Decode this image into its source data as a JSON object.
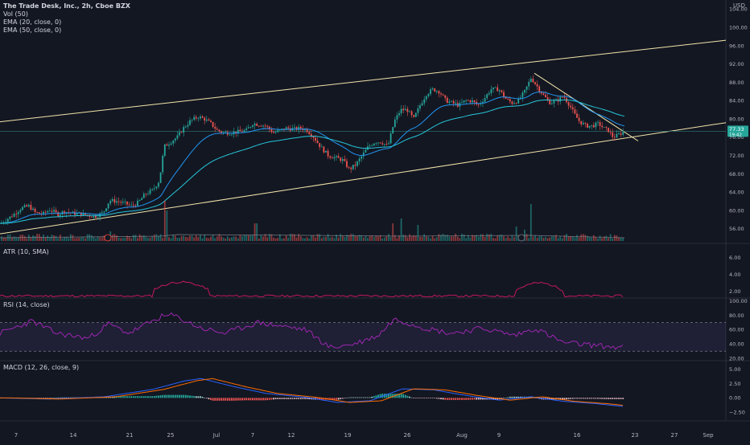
{
  "header": {
    "symbol_line": "The Trade Desk, Inc., 2h, Cboe BZX",
    "vol_label": "Vol (50)",
    "ema20_label": "EMA (20, close, 0)",
    "ema50_label": "EMA (50, close, 0)",
    "currency": "USD"
  },
  "panes": {
    "atr_label": "ATR (10, SMA)",
    "rsi_label": "RSI (14, close)",
    "macd_label": "MACD (12, 26, close, 9)"
  },
  "colors": {
    "background": "#131722",
    "up": "#26a69a",
    "down": "#ef5350",
    "channel": "#f3e5ab",
    "ema20": "#2196f3",
    "ema50": "#26c6da",
    "atr": "#c2185b",
    "rsi": "#9c27b0",
    "macd": "#2962ff",
    "signal": "#ff6d00"
  },
  "chart_data": [
    {
      "type": "candlestick",
      "price_ticks": [
        56,
        60,
        64,
        68,
        72,
        76,
        80,
        84,
        88,
        92,
        96,
        100,
        104
      ],
      "price_tick_labels": [
        "56.00",
        "60.00",
        "64.00",
        "68.00",
        "72.00",
        "76.00",
        "80.00",
        "84.00",
        "88.00",
        "92.00",
        "96.00",
        "100.00",
        "104.00"
      ],
      "ylim": [
        53,
        106
      ],
      "last_price": 77.33,
      "last_price_label": "77.33",
      "countdown_label": "19:42",
      "x_tick_labels": [
        "7",
        "14",
        "21",
        "25",
        "Jul",
        "7",
        "12",
        "19",
        "26",
        "Aug",
        "9",
        "16",
        "23",
        "27",
        "Sep"
      ],
      "price_path": [
        [
          0,
          57.2
        ],
        [
          8,
          58.0
        ],
        [
          16,
          59.0
        ],
        [
          26,
          60.5
        ],
        [
          36,
          61.0
        ],
        [
          44,
          59.5
        ],
        [
          54,
          59.3
        ],
        [
          62,
          60.2
        ],
        [
          72,
          59.2
        ],
        [
          80,
          59.8
        ],
        [
          90,
          59.4
        ],
        [
          100,
          59.3
        ],
        [
          108,
          59.0
        ],
        [
          118,
          58.7
        ],
        [
          128,
          59.5
        ],
        [
          136,
          62.2
        ],
        [
          146,
          62.0
        ],
        [
          156,
          61.5
        ],
        [
          164,
          61.0
        ],
        [
          172,
          61.8
        ],
        [
          180,
          63.5
        ],
        [
          190,
          64.5
        ],
        [
          198,
          66.5
        ],
        [
          204,
          74.0
        ],
        [
          212,
          75.0
        ],
        [
          220,
          76.0
        ],
        [
          228,
          78.0
        ],
        [
          236,
          79.5
        ],
        [
          246,
          80.5
        ],
        [
          254,
          80.0
        ],
        [
          262,
          79.0
        ],
        [
          270,
          77.5
        ],
        [
          278,
          77.0
        ],
        [
          288,
          77.0
        ],
        [
          296,
          77.2
        ],
        [
          306,
          77.5
        ],
        [
          314,
          79.0
        ],
        [
          322,
          78.8
        ],
        [
          330,
          78.5
        ],
        [
          340,
          77.0
        ],
        [
          348,
          77.5
        ],
        [
          356,
          78.0
        ],
        [
          366,
          77.8
        ],
        [
          374,
          78.0
        ],
        [
          382,
          77.5
        ],
        [
          390,
          76.0
        ],
        [
          398,
          74.0
        ],
        [
          408,
          72.0
        ],
        [
          418,
          71.5
        ],
        [
          426,
          71.0
        ],
        [
          434,
          69.0
        ],
        [
          442,
          70.0
        ],
        [
          450,
          72.0
        ],
        [
          458,
          74.0
        ],
        [
          466,
          75.0
        ],
        [
          474,
          75.0
        ],
        [
          482,
          74.0
        ],
        [
          490,
          79.5
        ],
        [
          498,
          82.0
        ],
        [
          506,
          82.0
        ],
        [
          514,
          80.0
        ],
        [
          522,
          83.0
        ],
        [
          530,
          85.5
        ],
        [
          538,
          86.5
        ],
        [
          546,
          86.0
        ],
        [
          554,
          84.0
        ],
        [
          562,
          83.5
        ],
        [
          570,
          83.0
        ],
        [
          578,
          84.0
        ],
        [
          586,
          84.0
        ],
        [
          594,
          83.0
        ],
        [
          602,
          84.5
        ],
        [
          610,
          86.5
        ],
        [
          620,
          86.5
        ],
        [
          628,
          84.5
        ],
        [
          636,
          83.5
        ],
        [
          644,
          84.0
        ],
        [
          652,
          86.0
        ],
        [
          660,
          89.0
        ],
        [
          668,
          87.0
        ],
        [
          676,
          85.0
        ],
        [
          684,
          83.5
        ],
        [
          692,
          84.0
        ],
        [
          700,
          85.0
        ],
        [
          708,
          83.0
        ],
        [
          714,
          81.0
        ],
        [
          720,
          79.5
        ],
        [
          728,
          78.5
        ],
        [
          736,
          78.5
        ],
        [
          744,
          79.0
        ],
        [
          750,
          78.0
        ],
        [
          756,
          77.5
        ],
        [
          762,
          76.0
        ],
        [
          768,
          76.5
        ],
        [
          776,
          77.3
        ]
      ]
    },
    {
      "type": "line",
      "name": "ATR (10, SMA)",
      "ticks": [
        2,
        4,
        6
      ],
      "tick_labels": [
        "2.00",
        "4.00",
        "6.00"
      ],
      "ylim": [
        1.3,
        7.6
      ]
    },
    {
      "type": "line",
      "name": "RSI (14, close)",
      "ticks": [
        20,
        40,
        60,
        80,
        100
      ],
      "tick_labels": [
        "20.00",
        "40.00",
        "60.00",
        "80.00",
        "100.00"
      ],
      "ylim": [
        18,
        103
      ],
      "band": [
        30,
        70
      ]
    },
    {
      "type": "line",
      "name": "MACD (12, 26, close, 9)",
      "ticks": [
        -2.5,
        0,
        2.5,
        5
      ],
      "tick_labels": [
        "−2.50",
        "0.00",
        "2.50",
        "5.00"
      ],
      "ylim": [
        -3.9,
        6.4
      ]
    }
  ]
}
